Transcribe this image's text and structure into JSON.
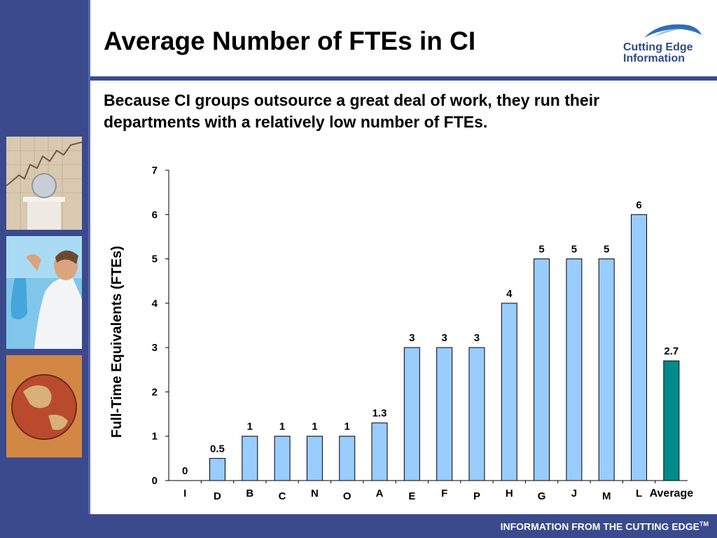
{
  "slide": {
    "title": "Average Number of FTEs in CI",
    "subtitle": "Because CI groups outsource a great deal of work, they run their departments with a relatively low number of FTEs.",
    "logo_line1": "Cutting Edge",
    "logo_line2": "Information",
    "footer": "INFORMATION FROM THE CUTTING EDGE",
    "footer_tm": "TM"
  },
  "colors": {
    "sidebar": "#3b4a8c",
    "bar": "#99ccff",
    "average_bar": "#008b8b",
    "logo_text": "#2f4a8a"
  },
  "chart_data": {
    "type": "bar",
    "title": "",
    "xlabel": "",
    "ylabel": "Full-Time Equivalents (FTEs)",
    "categories": [
      "I",
      "D",
      "B",
      "C",
      "N",
      "O",
      "A",
      "E",
      "F",
      "P",
      "H",
      "G",
      "J",
      "M",
      "L",
      "Average"
    ],
    "values": [
      0,
      0.5,
      1,
      1,
      1,
      1,
      1.3,
      3,
      3,
      3,
      4,
      5,
      5,
      5,
      6,
      2.7
    ],
    "data_labels": [
      "0",
      "0.5",
      "1",
      "1",
      "1",
      "1",
      "1.3",
      "3",
      "3",
      "3",
      "4",
      "5",
      "5",
      "5",
      "6",
      "2.7"
    ],
    "highlight_category": "Average",
    "ylim": [
      0,
      7
    ],
    "yticks": [
      0,
      1,
      2,
      3,
      4,
      5,
      6,
      7
    ],
    "grid": false,
    "legend": "none"
  }
}
